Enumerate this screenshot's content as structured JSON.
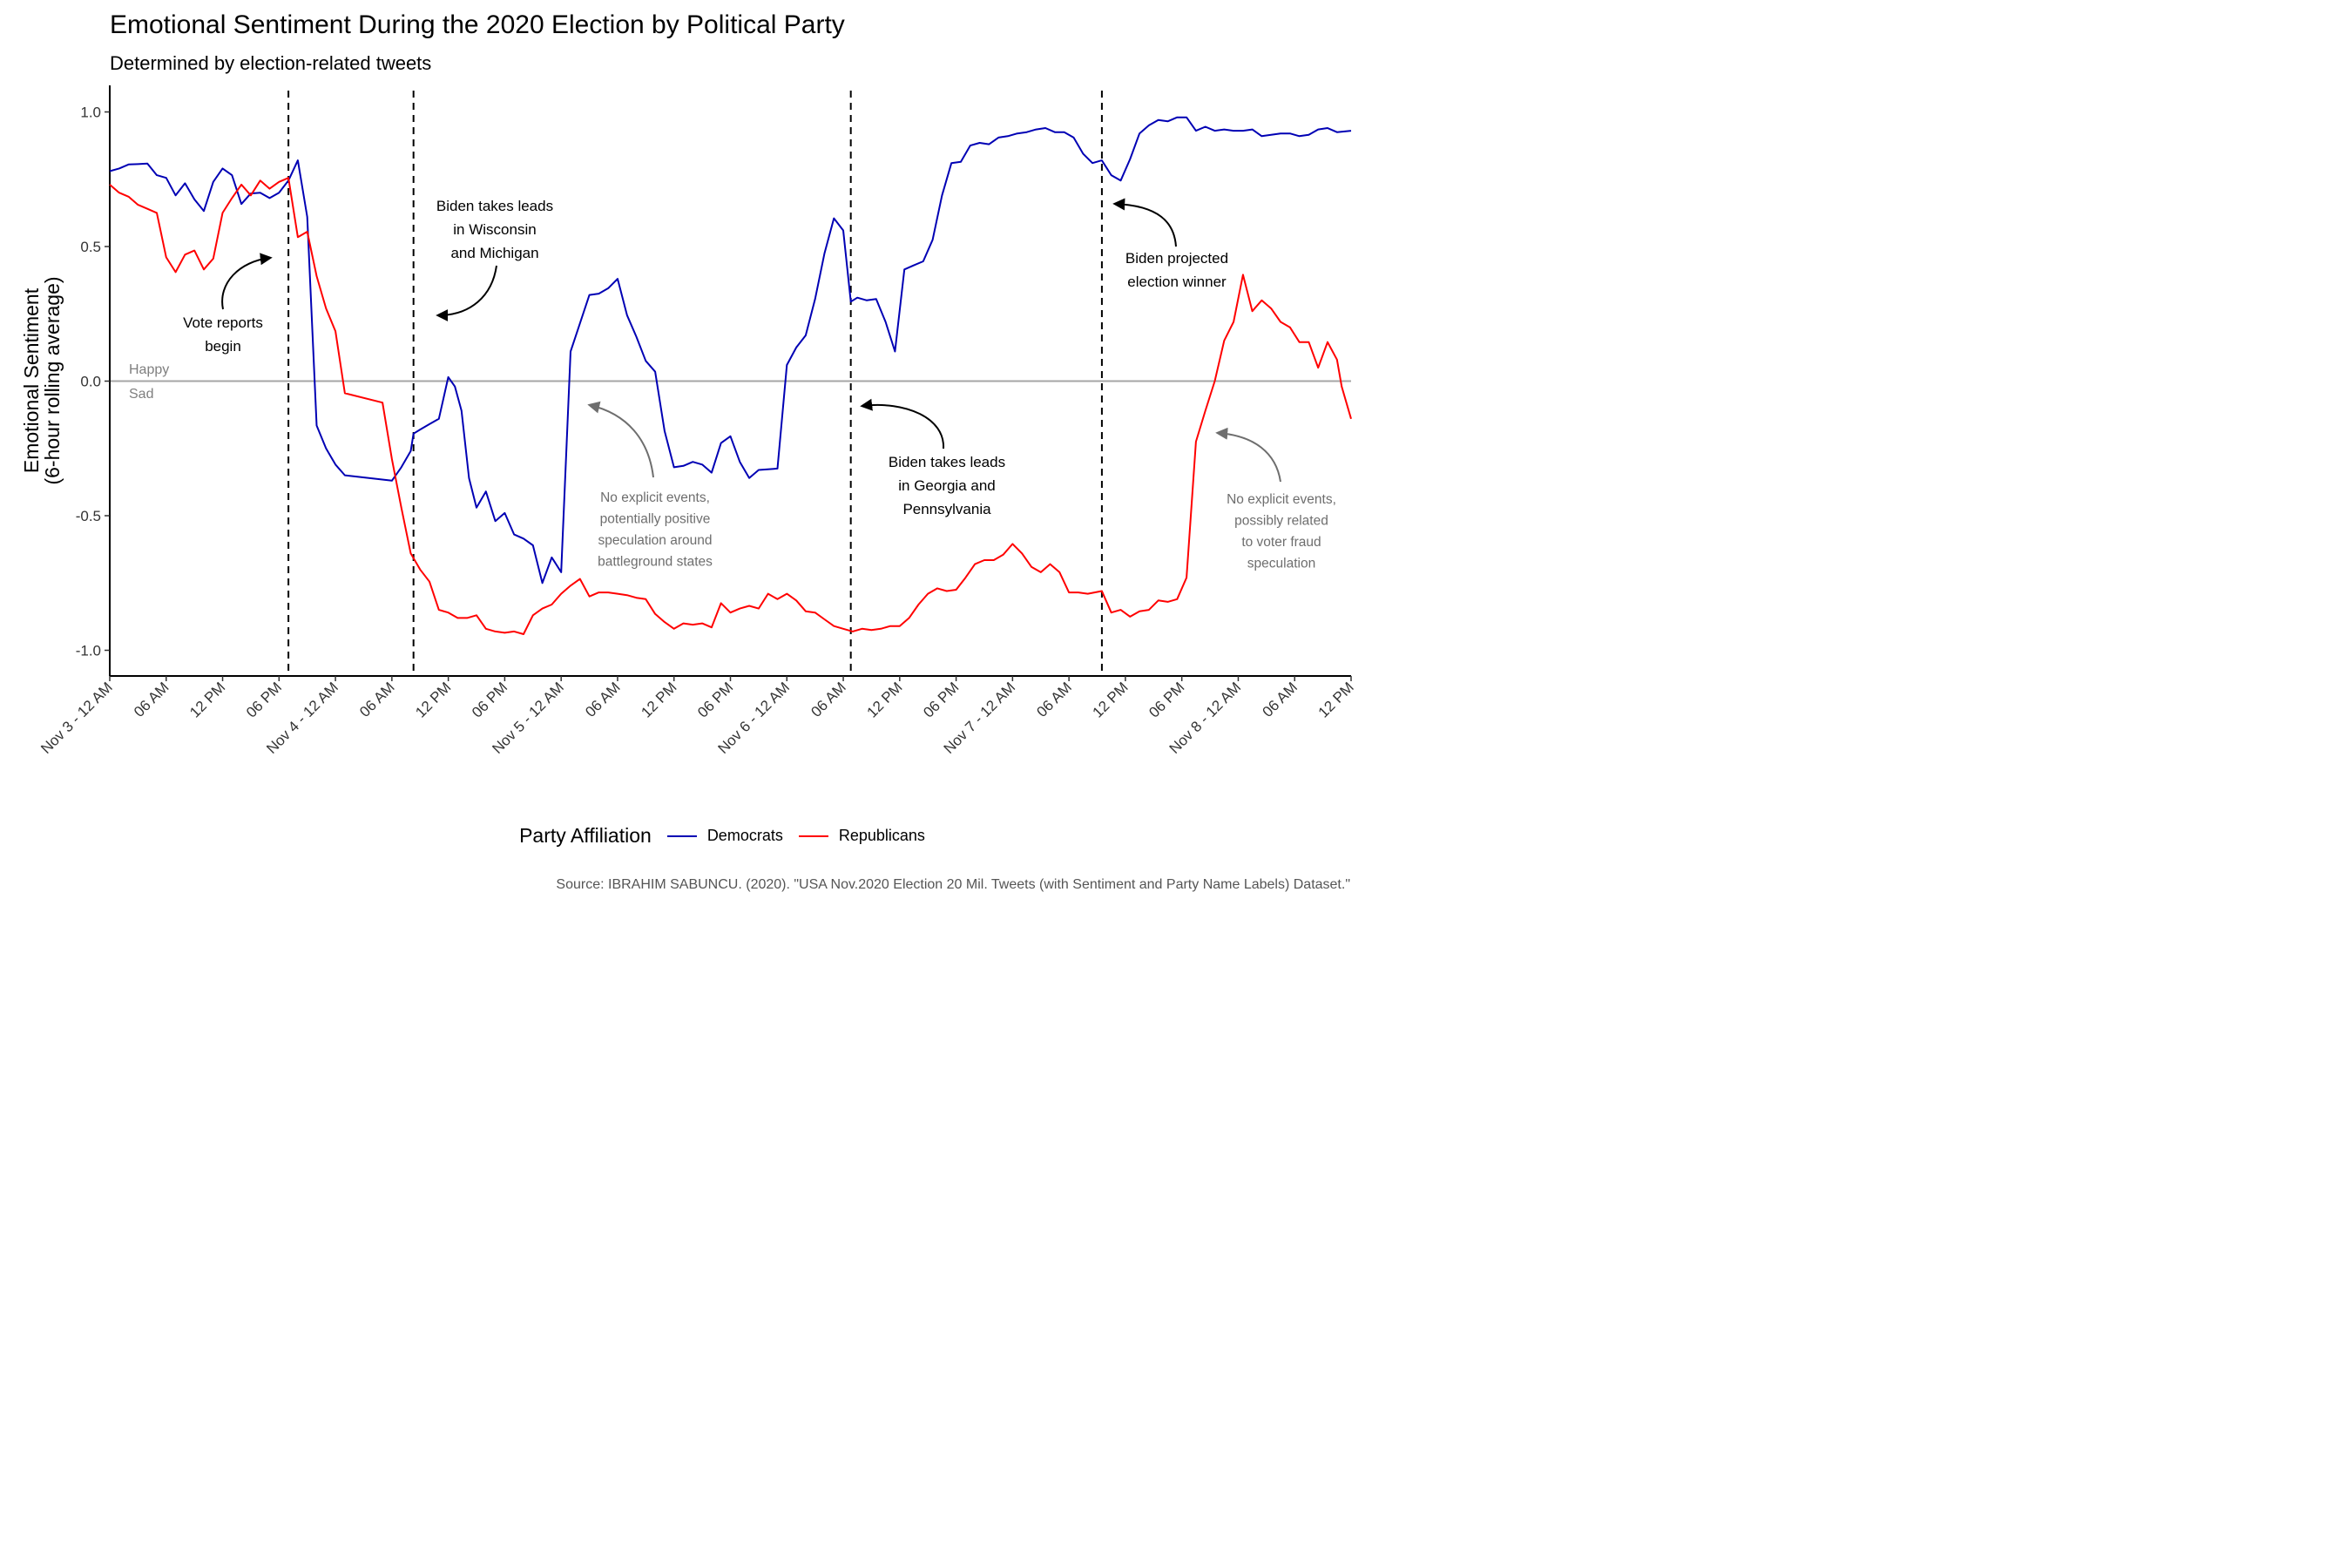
{
  "title": "Emotional Sentiment During the 2020 Election by Political Party",
  "subtitle": "Determined by election-related tweets",
  "caption": "Source: IBRAHIM SABUNCU. (2020). \"USA Nov.2020 Election 20 Mil. Tweets (with Sentiment and Party Name Labels) Dataset.\"",
  "legend_title": "Party Affiliation",
  "colors": {
    "democrats": "#0000b4",
    "republicans": "#ff0000",
    "zero_line": "#a6a6a6",
    "annotation_dark": "#000000",
    "annotation_grey": "#6e6e6e"
  },
  "chart_data": {
    "type": "line",
    "title": "Emotional Sentiment During the 2020 Election by Political Party",
    "subtitle": "Determined by election-related tweets",
    "xlabel": "",
    "ylabel": "Emotional Sentiment\n(6-hour rolling average)",
    "x_unit": "hours since Nov 3 - 12 AM",
    "xlim": [
      0,
      132
    ],
    "ylim": [
      -1.1,
      1.1
    ],
    "grid": false,
    "legend_position": "bottom",
    "x_ticks": [
      {
        "x": 0,
        "label": "Nov 3 - 12 AM"
      },
      {
        "x": 6,
        "label": "06 AM"
      },
      {
        "x": 12,
        "label": "12 PM"
      },
      {
        "x": 18,
        "label": "06 PM"
      },
      {
        "x": 24,
        "label": "Nov 4 - 12 AM"
      },
      {
        "x": 30,
        "label": "06 AM"
      },
      {
        "x": 36,
        "label": "12 PM"
      },
      {
        "x": 42,
        "label": "06 PM"
      },
      {
        "x": 48,
        "label": "Nov 5 - 12 AM"
      },
      {
        "x": 54,
        "label": "06 AM"
      },
      {
        "x": 60,
        "label": "12 PM"
      },
      {
        "x": 66,
        "label": "06 PM"
      },
      {
        "x": 72,
        "label": "Nov 6 - 12 AM"
      },
      {
        "x": 78,
        "label": "06 AM"
      },
      {
        "x": 84,
        "label": "12 PM"
      },
      {
        "x": 90,
        "label": "06 PM"
      },
      {
        "x": 96,
        "label": "Nov 7 - 12 AM"
      },
      {
        "x": 102,
        "label": "06 AM"
      },
      {
        "x": 108,
        "label": "12 PM"
      },
      {
        "x": 114,
        "label": "06 PM"
      },
      {
        "x": 120,
        "label": "Nov 8 - 12 AM"
      },
      {
        "x": 126,
        "label": "06 AM"
      },
      {
        "x": 132,
        "label": "12 PM"
      }
    ],
    "y_ticks": [
      {
        "y": 1.0,
        "label": "1.0"
      },
      {
        "y": 0.5,
        "label": "0.5"
      },
      {
        "y": 0.0,
        "label": "0.0"
      },
      {
        "y": -0.5,
        "label": "-0.5"
      },
      {
        "y": -1.0,
        "label": "-1.0"
      }
    ],
    "vlines": [
      19,
      32.3,
      78.8,
      105.5
    ],
    "hline": 0,
    "zero_labels": {
      "above": "Happy",
      "below": "Sad"
    },
    "series": [
      {
        "name": "Democrats",
        "color": "#0000b4",
        "points": [
          [
            0,
            0.78
          ],
          [
            1,
            0.79
          ],
          [
            2,
            0.805
          ],
          [
            3,
            0.806
          ],
          [
            4,
            0.808
          ],
          [
            5,
            0.765
          ],
          [
            6,
            0.755
          ],
          [
            7,
            0.69
          ],
          [
            8,
            0.735
          ],
          [
            9,
            0.675
          ],
          [
            10,
            0.632
          ],
          [
            11,
            0.74
          ],
          [
            12,
            0.79
          ],
          [
            13,
            0.765
          ],
          [
            14,
            0.658
          ],
          [
            15,
            0.697
          ],
          [
            16,
            0.7
          ],
          [
            17,
            0.68
          ],
          [
            18,
            0.7
          ],
          [
            19,
            0.745
          ],
          [
            20,
            0.82
          ],
          [
            21,
            0.61
          ],
          [
            22,
            -0.165
          ],
          [
            23,
            -0.25
          ],
          [
            24,
            -0.31
          ],
          [
            25,
            -0.35
          ],
          [
            30,
            -0.37
          ],
          [
            31,
            -0.32
          ],
          [
            32,
            -0.26
          ],
          [
            32.3,
            -0.195
          ],
          [
            33,
            -0.18
          ],
          [
            34,
            -0.16
          ],
          [
            35,
            -0.14
          ],
          [
            36,
            0.015
          ],
          [
            36.7,
            -0.02
          ],
          [
            37.4,
            -0.11
          ],
          [
            38.2,
            -0.36
          ],
          [
            39,
            -0.47
          ],
          [
            40,
            -0.41
          ],
          [
            41,
            -0.52
          ],
          [
            42,
            -0.49
          ],
          [
            43,
            -0.57
          ],
          [
            44,
            -0.585
          ],
          [
            45,
            -0.61
          ],
          [
            46,
            -0.75
          ],
          [
            47,
            -0.655
          ],
          [
            48,
            -0.71
          ],
          [
            49,
            0.11
          ],
          [
            50,
            0.215
          ],
          [
            51,
            0.32
          ],
          [
            52,
            0.325
          ],
          [
            53,
            0.345
          ],
          [
            54,
            0.38
          ],
          [
            55,
            0.245
          ],
          [
            56,
            0.165
          ],
          [
            57,
            0.075
          ],
          [
            58,
            0.035
          ],
          [
            59,
            -0.185
          ],
          [
            60,
            -0.32
          ],
          [
            61,
            -0.315
          ],
          [
            62,
            -0.3
          ],
          [
            63,
            -0.31
          ],
          [
            64,
            -0.34
          ],
          [
            65,
            -0.23
          ],
          [
            66,
            -0.205
          ],
          [
            67,
            -0.3
          ],
          [
            68,
            -0.36
          ],
          [
            69,
            -0.33
          ],
          [
            71,
            -0.325
          ],
          [
            72,
            0.06
          ],
          [
            73,
            0.125
          ],
          [
            74,
            0.17
          ],
          [
            75,
            0.305
          ],
          [
            76,
            0.475
          ],
          [
            77,
            0.605
          ],
          [
            78,
            0.56
          ],
          [
            78.8,
            0.295
          ],
          [
            79.5,
            0.31
          ],
          [
            80.5,
            0.3
          ],
          [
            81.5,
            0.305
          ],
          [
            82.5,
            0.22
          ],
          [
            83.5,
            0.11
          ],
          [
            84.5,
            0.415
          ],
          [
            85.5,
            0.43
          ],
          [
            86.5,
            0.445
          ],
          [
            87.5,
            0.525
          ],
          [
            88.5,
            0.69
          ],
          [
            89.5,
            0.81
          ],
          [
            90.5,
            0.815
          ],
          [
            91.5,
            0.875
          ],
          [
            92.5,
            0.885
          ],
          [
            93.5,
            0.88
          ],
          [
            94.5,
            0.905
          ],
          [
            95.5,
            0.91
          ],
          [
            96.5,
            0.92
          ],
          [
            97.5,
            0.925
          ],
          [
            98.5,
            0.935
          ],
          [
            99.5,
            0.94
          ],
          [
            100.5,
            0.925
          ],
          [
            101.5,
            0.925
          ],
          [
            102.5,
            0.905
          ],
          [
            103.5,
            0.845
          ],
          [
            104.5,
            0.81
          ],
          [
            105.5,
            0.82
          ],
          [
            106.5,
            0.765
          ],
          [
            107.5,
            0.745
          ],
          [
            108.5,
            0.825
          ],
          [
            109.5,
            0.92
          ],
          [
            110.5,
            0.95
          ],
          [
            111.5,
            0.97
          ],
          [
            112.5,
            0.965
          ],
          [
            113.5,
            0.98
          ],
          [
            114.5,
            0.98
          ],
          [
            115.5,
            0.93
          ],
          [
            116.5,
            0.945
          ],
          [
            117.5,
            0.93
          ],
          [
            118.5,
            0.935
          ],
          [
            119.5,
            0.93
          ],
          [
            120.5,
            0.93
          ],
          [
            121.5,
            0.935
          ],
          [
            122.5,
            0.91
          ],
          [
            123.5,
            0.915
          ],
          [
            124.5,
            0.92
          ],
          [
            125.5,
            0.92
          ],
          [
            126.5,
            0.91
          ],
          [
            127.5,
            0.915
          ],
          [
            128.5,
            0.935
          ],
          [
            129.5,
            0.94
          ],
          [
            130.5,
            0.925
          ],
          [
            132,
            0.93
          ]
        ]
      },
      {
        "name": "Republicans",
        "color": "#ff0000",
        "points": [
          [
            0,
            0.73
          ],
          [
            1,
            0.7
          ],
          [
            2,
            0.685
          ],
          [
            3,
            0.655
          ],
          [
            4,
            0.64
          ],
          [
            5,
            0.625
          ],
          [
            6,
            0.46
          ],
          [
            7,
            0.405
          ],
          [
            8,
            0.47
          ],
          [
            9,
            0.485
          ],
          [
            10,
            0.415
          ],
          [
            11,
            0.455
          ],
          [
            12,
            0.625
          ],
          [
            13,
            0.68
          ],
          [
            14,
            0.73
          ],
          [
            15,
            0.69
          ],
          [
            16,
            0.745
          ],
          [
            17,
            0.715
          ],
          [
            18,
            0.74
          ],
          [
            19,
            0.755
          ],
          [
            20,
            0.535
          ],
          [
            21,
            0.555
          ],
          [
            22,
            0.39
          ],
          [
            23,
            0.27
          ],
          [
            24,
            0.185
          ],
          [
            25,
            -0.045
          ],
          [
            29,
            -0.08
          ],
          [
            30,
            -0.29
          ],
          [
            31,
            -0.47
          ],
          [
            32,
            -0.64
          ],
          [
            33,
            -0.7
          ],
          [
            34,
            -0.745
          ],
          [
            35,
            -0.85
          ],
          [
            36,
            -0.86
          ],
          [
            37,
            -0.88
          ],
          [
            38,
            -0.88
          ],
          [
            39,
            -0.87
          ],
          [
            40,
            -0.92
          ],
          [
            41,
            -0.93
          ],
          [
            42,
            -0.935
          ],
          [
            43,
            -0.93
          ],
          [
            44,
            -0.94
          ],
          [
            45,
            -0.87
          ],
          [
            46,
            -0.845
          ],
          [
            47,
            -0.83
          ],
          [
            48,
            -0.79
          ],
          [
            49,
            -0.76
          ],
          [
            50,
            -0.735
          ],
          [
            51,
            -0.8
          ],
          [
            52,
            -0.785
          ],
          [
            53,
            -0.785
          ],
          [
            54,
            -0.79
          ],
          [
            55,
            -0.795
          ],
          [
            56,
            -0.805
          ],
          [
            57,
            -0.81
          ],
          [
            58,
            -0.865
          ],
          [
            59,
            -0.895
          ],
          [
            60,
            -0.92
          ],
          [
            61,
            -0.9
          ],
          [
            62,
            -0.905
          ],
          [
            63,
            -0.9
          ],
          [
            64,
            -0.915
          ],
          [
            65,
            -0.825
          ],
          [
            66,
            -0.86
          ],
          [
            67,
            -0.845
          ],
          [
            68,
            -0.835
          ],
          [
            69,
            -0.845
          ],
          [
            70,
            -0.79
          ],
          [
            71,
            -0.81
          ],
          [
            72,
            -0.79
          ],
          [
            73,
            -0.815
          ],
          [
            74,
            -0.855
          ],
          [
            75,
            -0.86
          ],
          [
            76,
            -0.885
          ],
          [
            77,
            -0.91
          ],
          [
            78,
            -0.92
          ],
          [
            79,
            -0.93
          ],
          [
            80,
            -0.92
          ],
          [
            81,
            -0.925
          ],
          [
            82,
            -0.92
          ],
          [
            83,
            -0.91
          ],
          [
            84,
            -0.91
          ],
          [
            85,
            -0.88
          ],
          [
            86,
            -0.83
          ],
          [
            87,
            -0.79
          ],
          [
            88,
            -0.77
          ],
          [
            89,
            -0.78
          ],
          [
            90,
            -0.775
          ],
          [
            91,
            -0.73
          ],
          [
            92,
            -0.68
          ],
          [
            93,
            -0.665
          ],
          [
            94,
            -0.665
          ],
          [
            95,
            -0.645
          ],
          [
            96,
            -0.605
          ],
          [
            97,
            -0.64
          ],
          [
            98,
            -0.69
          ],
          [
            99,
            -0.71
          ],
          [
            100,
            -0.68
          ],
          [
            101,
            -0.71
          ],
          [
            102,
            -0.785
          ],
          [
            103,
            -0.785
          ],
          [
            104,
            -0.79
          ],
          [
            105.5,
            -0.78
          ],
          [
            106.5,
            -0.86
          ],
          [
            107.5,
            -0.85
          ],
          [
            108.5,
            -0.875
          ],
          [
            109.5,
            -0.855
          ],
          [
            110.5,
            -0.85
          ],
          [
            111.5,
            -0.815
          ],
          [
            112.5,
            -0.82
          ],
          [
            113.5,
            -0.81
          ],
          [
            114.5,
            -0.73
          ],
          [
            115.5,
            -0.225
          ],
          [
            116.5,
            -0.11
          ],
          [
            117.5,
            0.0
          ],
          [
            118.5,
            0.15
          ],
          [
            119.5,
            0.22
          ],
          [
            120.5,
            0.395
          ],
          [
            121.5,
            0.26
          ],
          [
            122.5,
            0.3
          ],
          [
            123.5,
            0.27
          ],
          [
            124.5,
            0.22
          ],
          [
            125.5,
            0.2
          ],
          [
            126.5,
            0.145
          ],
          [
            127.5,
            0.145
          ],
          [
            128.5,
            0.05
          ],
          [
            129.5,
            0.145
          ],
          [
            130.5,
            0.08
          ],
          [
            131,
            -0.02
          ],
          [
            132,
            -0.14
          ]
        ]
      }
    ],
    "annotations": [
      {
        "id": "vote-reports",
        "lines": [
          "Vote reports",
          "begin"
        ],
        "style": "dark"
      },
      {
        "id": "wisconsin",
        "lines": [
          "Biden takes leads",
          "in Wisconsin",
          "and Michigan"
        ],
        "style": "dark"
      },
      {
        "id": "speculation",
        "lines": [
          "No explicit events,",
          "potentially positive",
          "speculation around",
          "battleground states"
        ],
        "style": "grey"
      },
      {
        "id": "georgia",
        "lines": [
          "Biden takes leads",
          "in Georgia and",
          "Pennsylvania"
        ],
        "style": "dark"
      },
      {
        "id": "winner",
        "lines": [
          "Biden projected",
          "election winner"
        ],
        "style": "dark"
      },
      {
        "id": "voter-fraud",
        "lines": [
          "No explicit events,",
          "possibly related",
          "to voter fraud",
          "speculation"
        ],
        "style": "grey"
      }
    ]
  }
}
